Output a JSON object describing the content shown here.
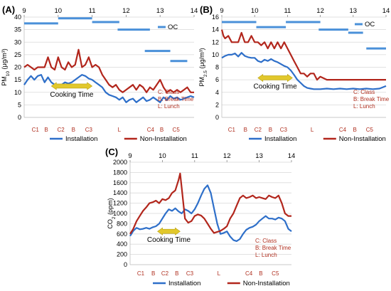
{
  "chart_data": [
    {
      "panel": "(A)",
      "type": "line",
      "ylabel": "PM10 (μg/m³)",
      "ylabel_main": "PM",
      "ylabel_sub": "10",
      "ylabel_unit": " (μg/m³)",
      "ylim": [
        0,
        40
      ],
      "yticks": [
        "0",
        "5",
        "10",
        "15",
        "20",
        "25",
        "30",
        "35",
        "40"
      ],
      "xlim": [
        9,
        14
      ],
      "hour_labels": [
        "9",
        "10",
        "11",
        "12",
        "13",
        "14"
      ],
      "oc_label": "OC",
      "oc_segments": [
        [
          9,
          10
        ],
        [
          10,
          11
        ],
        [
          11,
          11.8
        ],
        [
          11.75,
          12.7
        ],
        [
          12.55,
          13.3
        ],
        [
          13.3,
          13.8
        ]
      ],
      "oc_values": [
        37.5,
        39.5,
        38.0,
        35.0,
        26.5,
        22.5
      ],
      "session_labels": [
        "C1",
        "B",
        "C2",
        "B",
        "C3",
        "L",
        "C4",
        "B",
        "C5"
      ],
      "session_x": [
        9.33,
        9.65,
        10.08,
        10.45,
        10.9,
        11.8,
        12.72,
        13.05,
        13.47
      ],
      "notes": [
        "C: Class",
        "B: Break Time",
        "L: Lunch"
      ],
      "cooking_label": "Cooking Time",
      "cooking_range": [
        9.8,
        11.0
      ],
      "cooking_y": 12.5,
      "series": [
        {
          "name": "Installation",
          "color": "#2e6fc9",
          "x": [
            9,
            9.1,
            9.2,
            9.3,
            9.4,
            9.5,
            9.6,
            9.7,
            9.8,
            9.9,
            10,
            10.1,
            10.2,
            10.3,
            10.4,
            10.5,
            10.6,
            10.7,
            10.8,
            10.9,
            11,
            11.1,
            11.2,
            11.3,
            11.4,
            11.5,
            11.6,
            11.7,
            11.8,
            11.9,
            12,
            12.1,
            12.2,
            12.3,
            12.4,
            12.5,
            12.6,
            12.7,
            12.8,
            12.9,
            13,
            13.1,
            13.2,
            13.3,
            13.4,
            13.5,
            13.6,
            13.7,
            13.8,
            13.9,
            14
          ],
          "values": [
            13,
            15,
            16.5,
            15,
            16.5,
            17,
            14,
            16,
            14,
            13,
            13,
            13,
            14,
            13.5,
            14,
            15,
            16,
            17,
            16.5,
            15.5,
            15,
            14,
            13,
            12,
            10,
            9,
            8.5,
            8,
            7,
            8,
            6,
            7,
            7.5,
            6,
            7,
            8,
            6.5,
            7,
            8,
            7,
            6,
            8,
            7,
            8.5,
            7.5,
            8,
            7,
            7.5,
            8,
            8.5,
            8
          ]
        },
        {
          "name": "Non-Installation",
          "color": "#b2261c",
          "x": [
            9,
            9.1,
            9.2,
            9.3,
            9.4,
            9.5,
            9.6,
            9.7,
            9.8,
            9.9,
            10,
            10.1,
            10.2,
            10.3,
            10.4,
            10.5,
            10.6,
            10.7,
            10.8,
            10.9,
            11,
            11.1,
            11.2,
            11.3,
            11.4,
            11.5,
            11.6,
            11.7,
            11.8,
            11.9,
            12,
            12.1,
            12.2,
            12.3,
            12.4,
            12.5,
            12.6,
            12.7,
            12.8,
            12.9,
            13,
            13.1,
            13.2,
            13.3,
            13.4,
            13.5,
            13.6,
            13.7,
            13.8,
            13.9,
            14
          ],
          "values": [
            20,
            21,
            20,
            19,
            20,
            20,
            20,
            24,
            20,
            19,
            24,
            20,
            19,
            22,
            20,
            21,
            27,
            20,
            21,
            24,
            20,
            21,
            20,
            17,
            15,
            13,
            12,
            13,
            11,
            10,
            11,
            12,
            13,
            11,
            13,
            12,
            10,
            12,
            11,
            13,
            15,
            12,
            10,
            11,
            10,
            11,
            10,
            11,
            12,
            10,
            10
          ]
        }
      ]
    },
    {
      "panel": "(B)",
      "type": "line",
      "ylabel": "PM2.5 (μg/m³)",
      "ylabel_main": "PM",
      "ylabel_sub": "2.5",
      "ylabel_unit": " (μg/m³)",
      "ylim": [
        0,
        16
      ],
      "yticks": [
        "0",
        "2",
        "4",
        "6",
        "8",
        "10",
        "12",
        "14",
        "16"
      ],
      "xlim": [
        9,
        14
      ],
      "hour_labels": [
        "9",
        "10",
        "11",
        "12",
        "13",
        "14"
      ],
      "oc_label": "OC",
      "oc_segments": [
        [
          9,
          10.05
        ],
        [
          10.05,
          10.95
        ],
        [
          10.95,
          12
        ],
        [
          11.95,
          12.85
        ],
        [
          12.85,
          13.3
        ],
        [
          13.4,
          14
        ]
      ],
      "oc_values": [
        15.2,
        14.4,
        15.2,
        14.0,
        13.5,
        11.0
      ],
      "session_labels": [
        "C1",
        "B",
        "C2",
        "B",
        "C3",
        "L",
        "C4",
        "B",
        "C5"
      ],
      "session_x": [
        9.3,
        9.72,
        10.1,
        10.48,
        10.88,
        11.75,
        12.68,
        13.05,
        13.5
      ],
      "notes": [
        "C: Class",
        "B: Break Time",
        "L: Lunch"
      ],
      "cooking_label": "Cooking Time",
      "cooking_range": [
        10.1,
        11.15
      ],
      "cooking_y": 6.3,
      "series": [
        {
          "name": "Installation",
          "color": "#2e6fc9",
          "x": [
            9,
            9.1,
            9.2,
            9.3,
            9.4,
            9.5,
            9.6,
            9.7,
            9.8,
            9.9,
            10,
            10.1,
            10.2,
            10.3,
            10.4,
            10.5,
            10.6,
            10.7,
            10.8,
            10.9,
            11,
            11.1,
            11.2,
            11.3,
            11.4,
            11.5,
            11.6,
            11.7,
            11.8,
            11.9,
            12,
            12.2,
            12.4,
            12.6,
            12.8,
            13,
            13.2,
            13.4,
            13.6,
            13.8,
            14
          ],
          "values": [
            9.5,
            9.8,
            10,
            10,
            10.2,
            9.7,
            10.3,
            9.8,
            9.6,
            9.5,
            9.5,
            9,
            8.8,
            9.2,
            9,
            9.3,
            9,
            8.8,
            8.5,
            8.2,
            8,
            7.5,
            6.8,
            6,
            5.5,
            5,
            4.7,
            4.6,
            4.5,
            4.5,
            4.5,
            4.6,
            4.5,
            4.6,
            4.5,
            4.6,
            4.5,
            4.6,
            4.5,
            4.6,
            5
          ]
        },
        {
          "name": "Non-Installation",
          "color": "#b2261c",
          "x": [
            9,
            9.05,
            9.1,
            9.2,
            9.3,
            9.4,
            9.5,
            9.6,
            9.7,
            9.8,
            9.9,
            10,
            10.1,
            10.2,
            10.3,
            10.4,
            10.5,
            10.6,
            10.7,
            10.8,
            10.9,
            11,
            11.1,
            11.2,
            11.3,
            11.4,
            11.5,
            11.6,
            11.7,
            11.8,
            11.9,
            12,
            12.2,
            12.4,
            12.6,
            12.8,
            13,
            13.2,
            13.4,
            13.6,
            13.8,
            14
          ],
          "values": [
            14,
            13,
            12.6,
            13,
            12,
            12,
            12,
            13.5,
            12,
            12,
            13,
            12,
            12,
            11.5,
            12,
            11,
            12,
            11,
            12,
            11,
            12,
            11,
            10,
            9,
            8,
            7,
            7,
            6.5,
            7,
            7,
            6,
            6.5,
            6,
            6,
            6,
            6,
            6,
            6,
            6,
            6,
            6,
            6
          ]
        }
      ]
    },
    {
      "panel": "(C)",
      "type": "line",
      "ylabel": "CO2 (ppm)",
      "ylabel_main": "CO",
      "ylabel_sub": "2",
      "ylabel_unit": " (ppm)",
      "ylim": [
        0,
        2000
      ],
      "yticks": [
        "0",
        "200",
        "400",
        "600",
        "800",
        "1000",
        "1200",
        "1400",
        "1600",
        "1800",
        "2000"
      ],
      "xlim": [
        9,
        14
      ],
      "hour_labels": [
        "9",
        "10",
        "11",
        "12",
        "13",
        "14"
      ],
      "session_labels": [
        "C1",
        "B",
        "C2",
        "B",
        "C3",
        "L",
        "C4",
        "B",
        "C5"
      ],
      "session_x": [
        9.33,
        9.72,
        10.08,
        10.45,
        10.85,
        11.75,
        12.68,
        13.05,
        13.5
      ],
      "notes": [
        "C: Class",
        "B: Break Time",
        "L: Lunch"
      ],
      "cooking_label": "Cooking Time",
      "cooking_range": [
        9.85,
        10.55
      ],
      "cooking_y": 650,
      "series": [
        {
          "name": "Installation",
          "color": "#2e6fc9",
          "x": [
            9,
            9.1,
            9.2,
            9.3,
            9.4,
            9.5,
            9.6,
            9.7,
            9.8,
            9.9,
            10,
            10.1,
            10.2,
            10.3,
            10.4,
            10.5,
            10.6,
            10.7,
            10.8,
            10.9,
            11,
            11.1,
            11.2,
            11.3,
            11.4,
            11.5,
            11.6,
            11.7,
            11.8,
            11.9,
            12,
            12.1,
            12.2,
            12.3,
            12.4,
            12.5,
            12.6,
            12.7,
            12.8,
            12.9,
            13,
            13.1,
            13.2,
            13.3,
            13.4,
            13.5,
            13.6,
            13.7,
            13.8,
            13.9,
            14
          ],
          "values": [
            560,
            660,
            720,
            690,
            700,
            720,
            700,
            730,
            750,
            800,
            900,
            1000,
            1080,
            1050,
            1100,
            1040,
            1000,
            1080,
            1050,
            1000,
            1080,
            1200,
            1350,
            1480,
            1550,
            1400,
            1100,
            800,
            600,
            620,
            650,
            550,
            480,
            460,
            500,
            600,
            680,
            720,
            740,
            780,
            850,
            900,
            950,
            900,
            900,
            880,
            920,
            900,
            850,
            700,
            650
          ]
        },
        {
          "name": "Non-Installation",
          "color": "#b2261c",
          "x": [
            9,
            9.1,
            9.2,
            9.3,
            9.4,
            9.5,
            9.6,
            9.7,
            9.8,
            9.9,
            10,
            10.1,
            10.2,
            10.3,
            10.4,
            10.5,
            10.55,
            10.6,
            10.65,
            10.7,
            10.8,
            10.9,
            11,
            11.1,
            11.2,
            11.3,
            11.4,
            11.5,
            11.6,
            11.7,
            11.8,
            11.9,
            12,
            12.1,
            12.2,
            12.3,
            12.4,
            12.5,
            12.6,
            12.7,
            12.8,
            12.9,
            13,
            13.1,
            13.2,
            13.3,
            13.4,
            13.5,
            13.6,
            13.7,
            13.8,
            13.9,
            14
          ],
          "values": [
            600,
            700,
            850,
            950,
            1050,
            1120,
            1200,
            1220,
            1250,
            1200,
            1280,
            1260,
            1300,
            1400,
            1450,
            1650,
            1780,
            1500,
            1200,
            900,
            820,
            850,
            950,
            980,
            960,
            900,
            800,
            700,
            620,
            640,
            660,
            700,
            750,
            900,
            1000,
            1150,
            1300,
            1350,
            1300,
            1320,
            1350,
            1300,
            1320,
            1300,
            1280,
            1350,
            1320,
            1300,
            1350,
            1200,
            1000,
            950,
            950
          ]
        }
      ]
    }
  ]
}
